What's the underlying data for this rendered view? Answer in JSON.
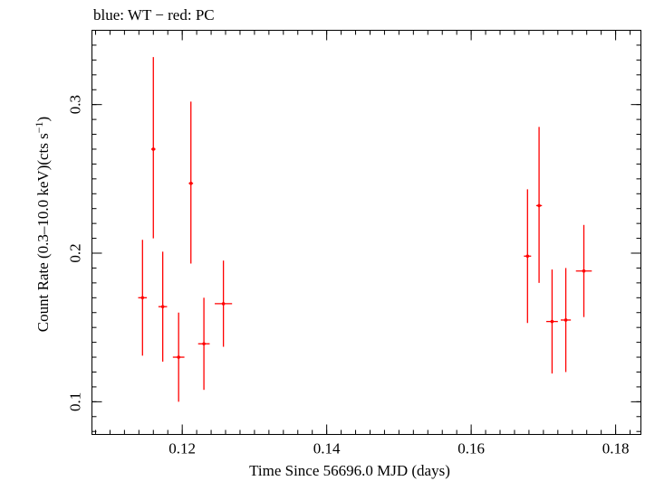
{
  "chart_data": {
    "type": "scatter",
    "title": "blue: WT − red: PC",
    "xlabel": "Time Since 56696.0 MJD (days)",
    "ylabel_parts": [
      "Count Rate (0.3–10.0 keV)(cts s",
      "−1",
      ")"
    ],
    "xlim": [
      0.1075,
      0.1835
    ],
    "ylim": [
      0.078,
      0.35
    ],
    "x_ticks": [
      0.12,
      0.14,
      0.16,
      0.18
    ],
    "x_tick_labels": [
      "0.12",
      "0.14",
      "0.16",
      "0.18"
    ],
    "x_minor_step": 0.002,
    "y_ticks": [
      0.1,
      0.2,
      0.3
    ],
    "y_tick_labels": [
      "0.1",
      "0.2",
      "0.3"
    ],
    "y_minor_step": 0.01,
    "grid": false,
    "series": [
      {
        "name": "PC",
        "color": "#ff0000",
        "points": [
          {
            "x": 0.1145,
            "xerr": 0.0006,
            "y": 0.17,
            "yerr_low": 0.039,
            "yerr_high": 0.039
          },
          {
            "x": 0.116,
            "xerr": 0.0003,
            "y": 0.27,
            "yerr_low": 0.06,
            "yerr_high": 0.062
          },
          {
            "x": 0.1173,
            "xerr": 0.0006,
            "y": 0.164,
            "yerr_low": 0.037,
            "yerr_high": 0.037
          },
          {
            "x": 0.1195,
            "xerr": 0.0008,
            "y": 0.13,
            "yerr_low": 0.03,
            "yerr_high": 0.03
          },
          {
            "x": 0.1212,
            "xerr": 0.0003,
            "y": 0.247,
            "yerr_low": 0.054,
            "yerr_high": 0.055
          },
          {
            "x": 0.123,
            "xerr": 0.0008,
            "y": 0.139,
            "yerr_low": 0.031,
            "yerr_high": 0.031
          },
          {
            "x": 0.1257,
            "xerr": 0.0012,
            "y": 0.166,
            "yerr_low": 0.029,
            "yerr_high": 0.029
          },
          {
            "x": 0.1678,
            "xerr": 0.0005,
            "y": 0.198,
            "yerr_low": 0.045,
            "yerr_high": 0.045
          },
          {
            "x": 0.1694,
            "xerr": 0.0004,
            "y": 0.232,
            "yerr_low": 0.052,
            "yerr_high": 0.053
          },
          {
            "x": 0.1712,
            "xerr": 0.0008,
            "y": 0.154,
            "yerr_low": 0.035,
            "yerr_high": 0.035
          },
          {
            "x": 0.1731,
            "xerr": 0.0007,
            "y": 0.155,
            "yerr_low": 0.035,
            "yerr_high": 0.035
          },
          {
            "x": 0.1756,
            "xerr": 0.0011,
            "y": 0.188,
            "yerr_low": 0.031,
            "yerr_high": 0.031
          }
        ]
      }
    ]
  }
}
